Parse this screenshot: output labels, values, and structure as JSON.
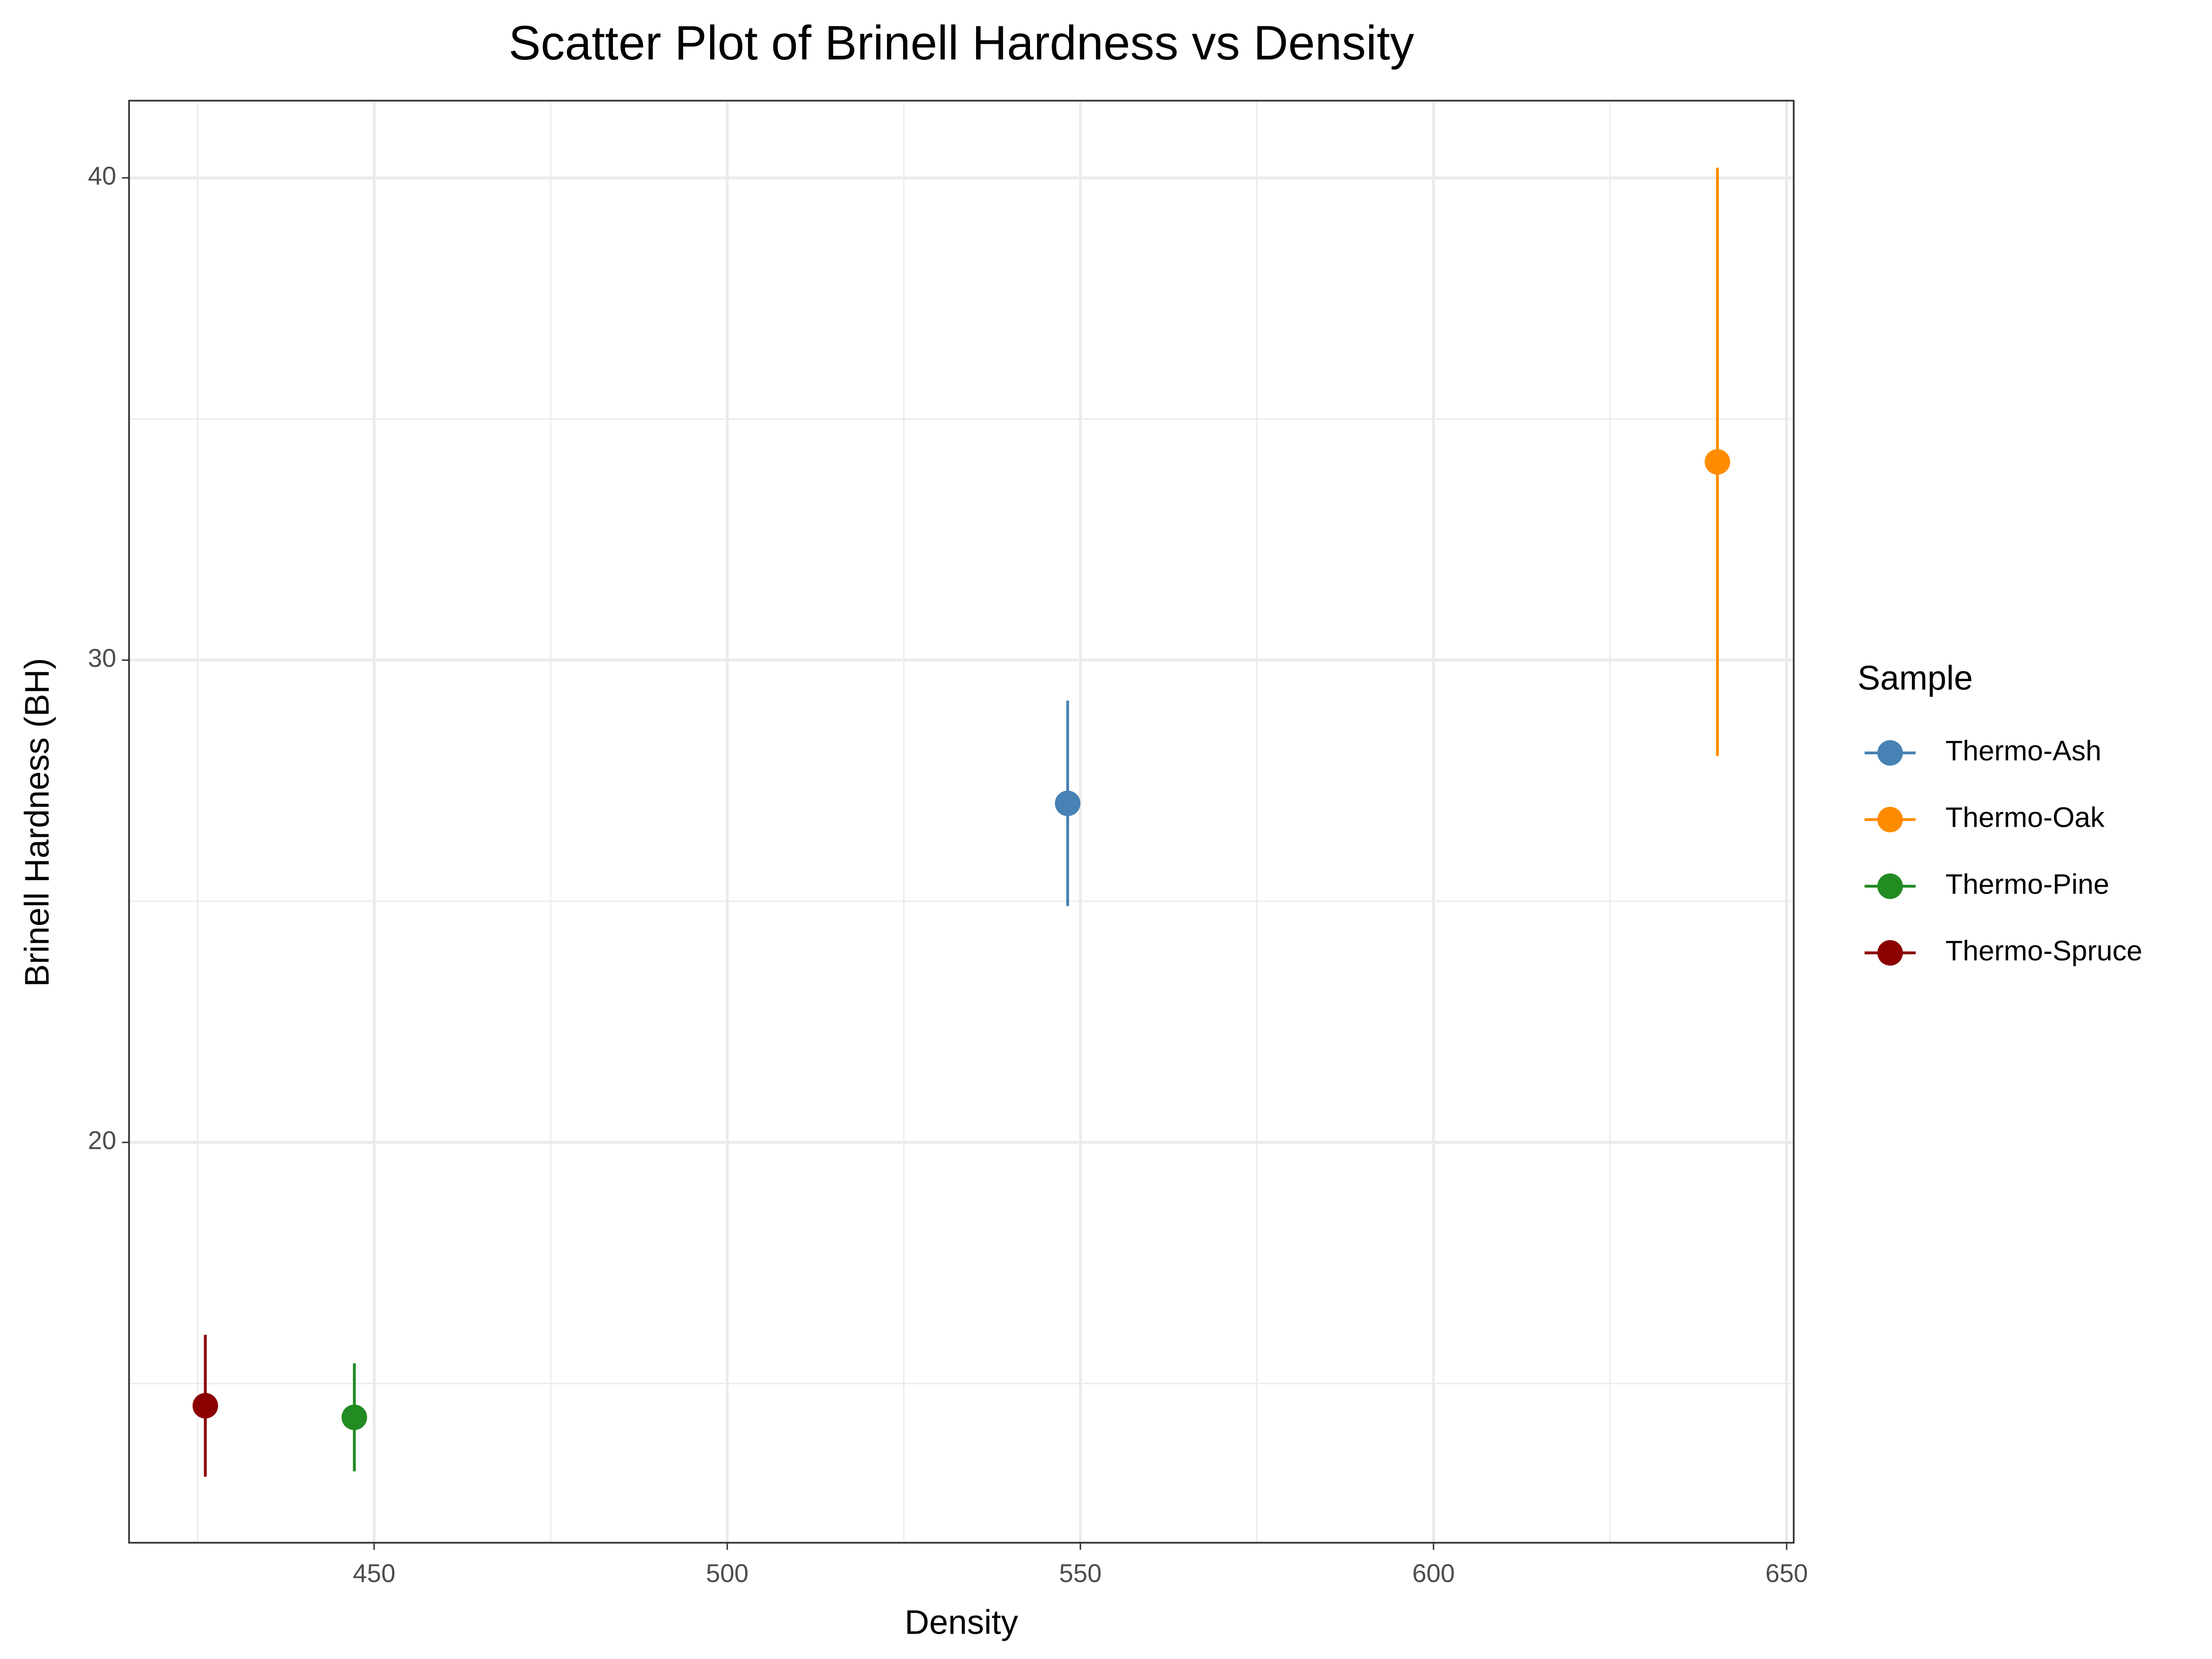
{
  "chart_data": {
    "type": "scatter",
    "title": "Scatter Plot of Brinell Hardness vs Density",
    "x_label": "Density",
    "y_label": "Brinell Hardness (BH)",
    "legend_title": "Sample",
    "legend_position": "right",
    "xlim": [
      415.3,
      651
    ],
    "ylim": [
      11.7,
      41.6
    ],
    "xticks": [
      450,
      500,
      550,
      600,
      650
    ],
    "yticks": [
      20,
      30,
      40
    ],
    "xminor": [
      425,
      475,
      525,
      575,
      625
    ],
    "yminor": [
      15,
      25,
      35
    ],
    "grid": true,
    "series": [
      {
        "name": "Thermo-Ash",
        "color": "#4682b4",
        "x": [
          548.2
        ],
        "values": [
          27.03
        ],
        "errors": [
          2.13
        ]
      },
      {
        "name": "Thermo-Oak",
        "color": "#ff8c00",
        "x": [
          640.2
        ],
        "values": [
          34.11
        ],
        "errors": [
          6.1
        ]
      },
      {
        "name": "Thermo-Pine",
        "color": "#228b22",
        "x": [
          447.2
        ],
        "values": [
          14.3
        ],
        "errors": [
          1.12
        ]
      },
      {
        "name": "Thermo-Spruce",
        "color": "#8b0000",
        "x": [
          426.1
        ],
        "values": [
          14.54
        ],
        "errors": [
          1.47
        ]
      }
    ]
  }
}
